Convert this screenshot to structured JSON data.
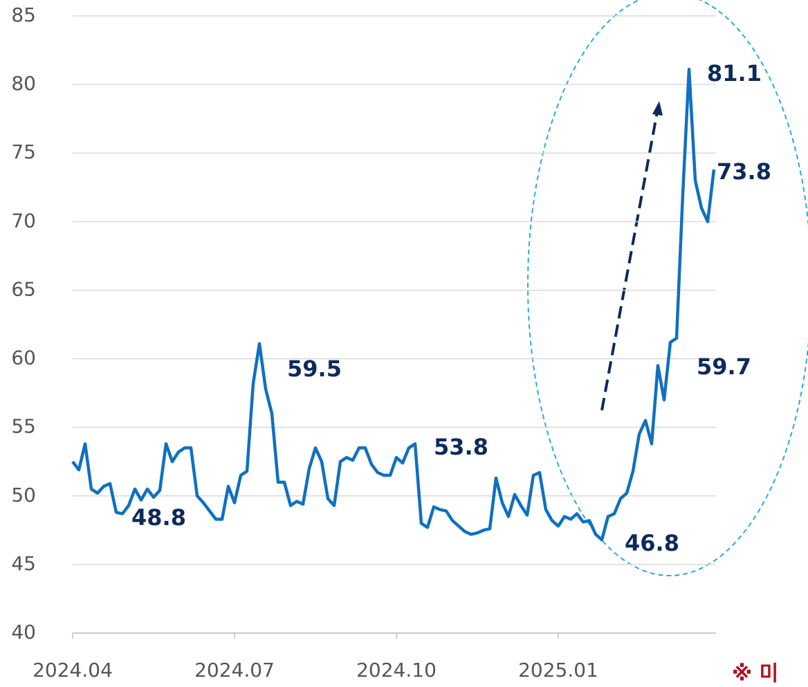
{
  "chart_data": {
    "type": "line",
    "categories": [
      "2024.04",
      null,
      null,
      null,
      null,
      null,
      null,
      null,
      null,
      null,
      null,
      null,
      null,
      null,
      null,
      null,
      null,
      null,
      null,
      null,
      null,
      null,
      null,
      null,
      null,
      null,
      "2024.07",
      null,
      null,
      null,
      null,
      null,
      null,
      null,
      null,
      null,
      null,
      null,
      null,
      null,
      null,
      null,
      null,
      null,
      null,
      null,
      null,
      null,
      null,
      null,
      null,
      null,
      "2024.10",
      null,
      null,
      null,
      null,
      null,
      null,
      null,
      null,
      null,
      null,
      null,
      null,
      null,
      null,
      null,
      null,
      null,
      null,
      null,
      null,
      null,
      null,
      null,
      null,
      null,
      "2025.01",
      null,
      null,
      null,
      null,
      null,
      null,
      null,
      null,
      null,
      null,
      null,
      null,
      null,
      null,
      null,
      null,
      null,
      null,
      null,
      null,
      null,
      null,
      null,
      null,
      null
    ],
    "series": [
      {
        "name": null,
        "color": "#0f70c1",
        "values": [
          52.5,
          51.9,
          53.8,
          50.5,
          50.2,
          50.7,
          50.9,
          48.8,
          48.7,
          49.3,
          50.5,
          49.7,
          50.5,
          49.9,
          50.4,
          53.8,
          52.5,
          53.2,
          53.5,
          53.5,
          50.0,
          49.5,
          48.9,
          48.3,
          48.3,
          50.7,
          49.5,
          51.5,
          51.8,
          58.2,
          61.1,
          57.8,
          56.0,
          51.0,
          51.0,
          49.3,
          49.6,
          49.4,
          52.0,
          53.5,
          52.5,
          49.8,
          49.3,
          52.5,
          52.8,
          52.6,
          53.5,
          53.5,
          52.3,
          51.7,
          51.5,
          51.5,
          52.8,
          52.4,
          53.5,
          53.8,
          48.0,
          47.7,
          49.2,
          49.0,
          48.9,
          48.2,
          47.8,
          47.4,
          47.2,
          47.3,
          47.5,
          47.6,
          51.3,
          49.5,
          48.5,
          50.1,
          49.3,
          48.6,
          51.5,
          51.7,
          49.0,
          48.2,
          47.8,
          48.5,
          48.3,
          48.7,
          48.1,
          48.2,
          47.2,
          46.8,
          48.5,
          48.7,
          49.8,
          50.2,
          51.8,
          54.5,
          55.5,
          53.8,
          59.5,
          57.0,
          61.2,
          61.5,
          72.0,
          81.1,
          73.0,
          71.0,
          70.0,
          73.8
        ]
      }
    ],
    "ylim": [
      40,
      85
    ],
    "yticks": [
      40,
      45,
      50,
      55,
      60,
      65,
      70,
      75,
      80,
      85
    ],
    "grid": true,
    "annotations": [
      "48.8",
      "59.5",
      "53.8",
      "46.8",
      "59.7",
      "81.1",
      "73.8"
    ],
    "note": "※ 미"
  }
}
